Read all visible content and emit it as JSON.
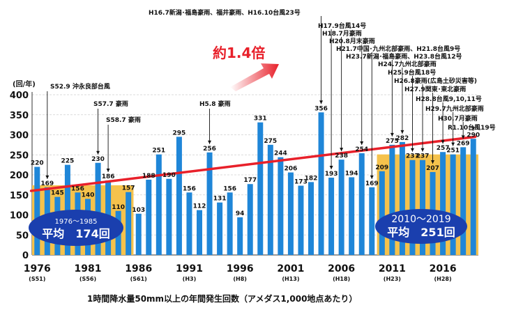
{
  "chart_data": {
    "type": "bar",
    "x": [
      1976,
      1977,
      1978,
      1979,
      1980,
      1981,
      1982,
      1983,
      1984,
      1985,
      1986,
      1987,
      1988,
      1989,
      1990,
      1991,
      1992,
      1993,
      1994,
      1995,
      1996,
      1997,
      1998,
      1999,
      2000,
      2001,
      2002,
      2003,
      2004,
      2005,
      2006,
      2007,
      2008,
      2009,
      2010,
      2011,
      2012,
      2013,
      2014,
      2015,
      2016,
      2017,
      2018,
      2019
    ],
    "values": [
      220,
      169,
      145,
      225,
      156,
      140,
      230,
      186,
      110,
      157,
      103,
      188,
      251,
      190,
      295,
      156,
      112,
      256,
      131,
      156,
      94,
      177,
      331,
      275,
      244,
      206,
      173,
      182,
      356,
      193,
      238,
      194,
      254,
      169,
      209,
      275,
      282,
      237,
      237,
      207,
      257,
      251,
      269,
      290
    ],
    "value_labels": [
      "220",
      "169",
      "145",
      "225",
      "156",
      "140",
      "230",
      "186",
      "110",
      "157",
      "103",
      "188",
      "251",
      "190",
      "295",
      "156",
      "112",
      "256",
      "131",
      "156",
      "94",
      "177",
      "331",
      "275",
      "244",
      "206",
      "173",
      "182",
      "356",
      "193",
      "238",
      "194",
      "254",
      "169",
      "209",
      "275",
      "282",
      "237",
      "237",
      "207",
      "257",
      "251",
      "269",
      "290"
    ],
    "ylabel": "(回/年)",
    "ylim": [
      0,
      400
    ],
    "yticks": [
      0,
      50,
      100,
      150,
      200,
      250,
      300,
      350,
      400
    ],
    "xticks": [
      {
        "year": 1976,
        "label": "1976",
        "era": "(S51)"
      },
      {
        "year": 1981,
        "label": "1981",
        "era": "(S56)"
      },
      {
        "year": 1986,
        "label": "1986",
        "era": "(S61)"
      },
      {
        "year": 1991,
        "label": "1991",
        "era": "(H3)"
      },
      {
        "year": 1996,
        "label": "1996",
        "era": "(H8)"
      },
      {
        "year": 2001,
        "label": "2001",
        "era": "(H13)"
      },
      {
        "year": 2006,
        "label": "2006",
        "era": "(H18)"
      },
      {
        "year": 2011,
        "label": "2011",
        "era": "(H23)"
      },
      {
        "year": 2016,
        "label": "2016",
        "era": "(H28)"
      }
    ],
    "averages": [
      {
        "period": "1976～1985",
        "label": "平均　174回",
        "value": 174,
        "range": [
          1976,
          1985
        ]
      },
      {
        "period": "2010～2019",
        "label": "平均　251回",
        "value": 251,
        "range": [
          2010,
          2019
        ]
      }
    ],
    "trend": {
      "start": [
        1976,
        160
      ],
      "end": [
        2019,
        295
      ]
    },
    "headline": "約1.4倍",
    "caption": "1時間降水量50mm以上の年間発生回数（アメダス1,000地点あたり）",
    "grid": true,
    "colors": {
      "bar": "#1f86d8",
      "avg": "#f5c24c",
      "trend": "#e8202a",
      "ellipse": "#1a3fae",
      "text": "#111111"
    },
    "annotations": [
      {
        "text": "S52.9 沖永良部台風",
        "year": 1977
      },
      {
        "text": "S57.7 豪雨",
        "year": 1982
      },
      {
        "text": "S58.7 豪雨",
        "year": 1983
      },
      {
        "text": "H5.8 豪雨",
        "year": 1993
      },
      {
        "text": "H16.7新潟･福島豪雨、福井豪雨、H16.10台風23号",
        "year": 2004
      },
      {
        "text": "H17.9台風14号",
        "year": 2005
      },
      {
        "text": "H18.7月豪雨",
        "year": 2006
      },
      {
        "text": "H20.8月末豪雨",
        "year": 2008
      },
      {
        "text": "H21.7中国･九州北部豪雨、H21.8台風9号",
        "year": 2009
      },
      {
        "text": "H23.7新潟･福島豪雨、H23.8台風12号",
        "year": 2011
      },
      {
        "text": "H24.7九州北部豪雨",
        "year": 2012
      },
      {
        "text": "H25.9台風18号",
        "year": 2013
      },
      {
        "text": "H26.8豪雨(広島土砂災害等)",
        "year": 2014
      },
      {
        "text": "H27.9関東･東北豪雨",
        "year": 2015
      },
      {
        "text": "H28.8台風9,10,11号",
        "year": 2016
      },
      {
        "text": "H29.7九州北部豪雨",
        "year": 2017
      },
      {
        "text": "H30.7月豪雨",
        "year": 2018
      },
      {
        "text": "R1.10台風19号",
        "year": 2019
      }
    ]
  }
}
